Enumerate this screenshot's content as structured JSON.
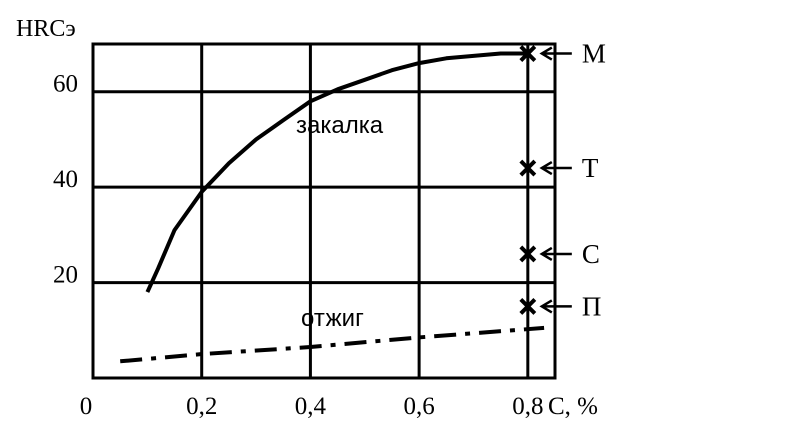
{
  "chart_data": {
    "type": "line",
    "title": "",
    "xlabel": "С, %",
    "ylabel": "HRCэ",
    "xlim": [
      0,
      0.85
    ],
    "ylim": [
      0,
      70
    ],
    "x_ticks": [
      {
        "value": 0,
        "label": "0"
      },
      {
        "value": 0.2,
        "label": "0,2"
      },
      {
        "value": 0.4,
        "label": "0,4"
      },
      {
        "value": 0.6,
        "label": "0,6"
      },
      {
        "value": 0.8,
        "label": "0,8"
      }
    ],
    "y_ticks": [
      {
        "value": 20,
        "label": "20"
      },
      {
        "value": 40,
        "label": "40"
      },
      {
        "value": 60,
        "label": "60"
      }
    ],
    "grid": true,
    "series": [
      {
        "name": "закалка",
        "style": "solid",
        "x": [
          0.1,
          0.12,
          0.15,
          0.2,
          0.25,
          0.3,
          0.35,
          0.4,
          0.45,
          0.5,
          0.55,
          0.6,
          0.65,
          0.7,
          0.75,
          0.8
        ],
        "y": [
          18,
          23,
          31,
          39,
          45,
          50,
          54,
          58,
          60.5,
          62.5,
          64.5,
          66,
          67,
          67.5,
          68,
          68
        ]
      },
      {
        "name": "отжиг",
        "style": "dash-dot",
        "x": [
          0.05,
          0.2,
          0.4,
          0.6,
          0.83
        ],
        "y": [
          3.5,
          5,
          6.5,
          8.5,
          10.5
        ]
      }
    ],
    "points": [
      {
        "label": "М",
        "x": 0.8,
        "y": 68
      },
      {
        "label": "Т",
        "x": 0.8,
        "y": 44
      },
      {
        "label": "С",
        "x": 0.8,
        "y": 26
      },
      {
        "label": "П",
        "x": 0.8,
        "y": 15
      }
    ],
    "colors": {
      "line": "#000000",
      "background": "#ffffff"
    }
  }
}
